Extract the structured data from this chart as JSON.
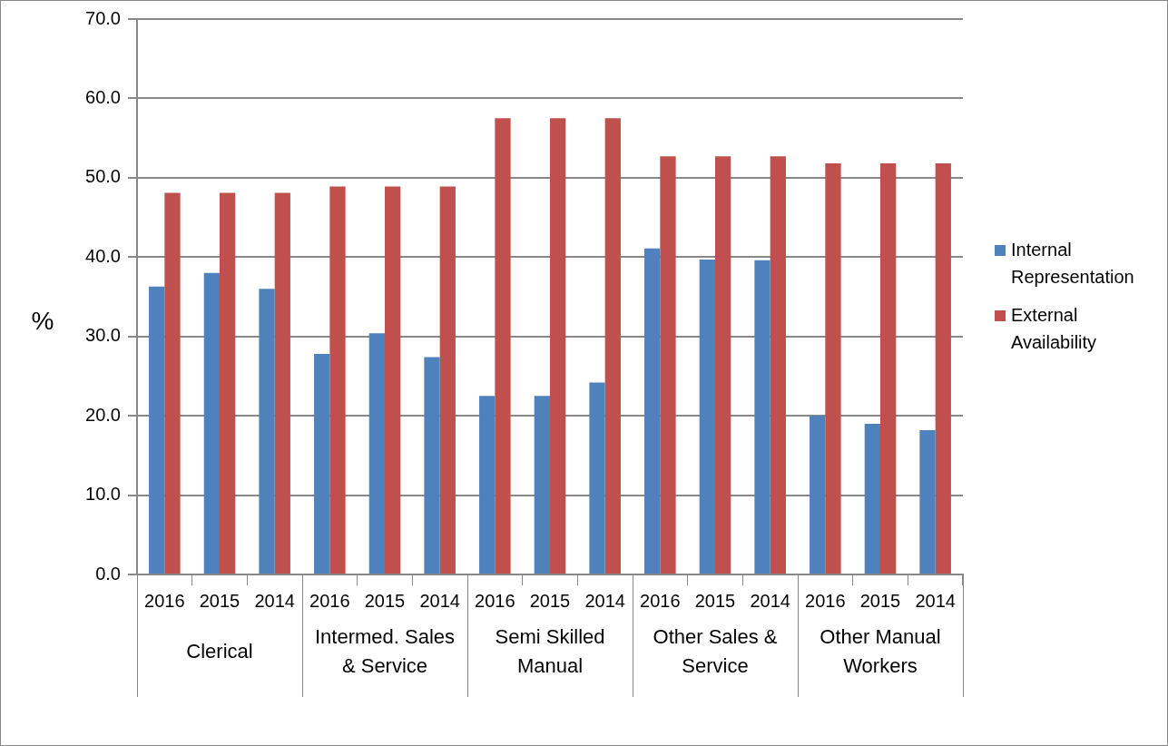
{
  "chart_data": {
    "type": "bar",
    "ylabel": "%",
    "categories": [
      "2016",
      "2015",
      "2014",
      "2016",
      "2015",
      "2014",
      "2016",
      "2015",
      "2014",
      "2016",
      "2015",
      "2014",
      "2016",
      "2015",
      "2014"
    ],
    "annotations": [
      "Clerical",
      "Intermed. Sales & Service",
      "Semi Skilled Manual",
      "Other Sales & Service",
      "Other Manual Workers"
    ],
    "series": [
      {
        "name": "Internal Representation",
        "color": "#4f81bd",
        "values": [
          36.3,
          38.0,
          36.0,
          27.8,
          30.4,
          27.4,
          22.5,
          22.5,
          24.2,
          41.1,
          39.7,
          39.6,
          20.0,
          19.0,
          18.2
        ]
      },
      {
        "name": "External Availability",
        "color": "#c0504d",
        "values": [
          48.1,
          48.1,
          48.1,
          48.9,
          48.9,
          48.9,
          57.5,
          57.5,
          57.5,
          52.7,
          52.7,
          52.7,
          51.8,
          51.8,
          51.8
        ]
      }
    ],
    "ylim": [
      0,
      70
    ],
    "yticks": [
      {
        "value": 0,
        "label": "0.0"
      },
      {
        "value": 10,
        "label": "10.0"
      },
      {
        "value": 20,
        "label": "20.0"
      },
      {
        "value": 30,
        "label": "30.0"
      },
      {
        "value": 40,
        "label": "40.0"
      },
      {
        "value": 50,
        "label": "50.0"
      },
      {
        "value": 60,
        "label": "60.0"
      },
      {
        "value": 70,
        "label": "70.0"
      }
    ],
    "grid": "y",
    "legend": "right"
  }
}
